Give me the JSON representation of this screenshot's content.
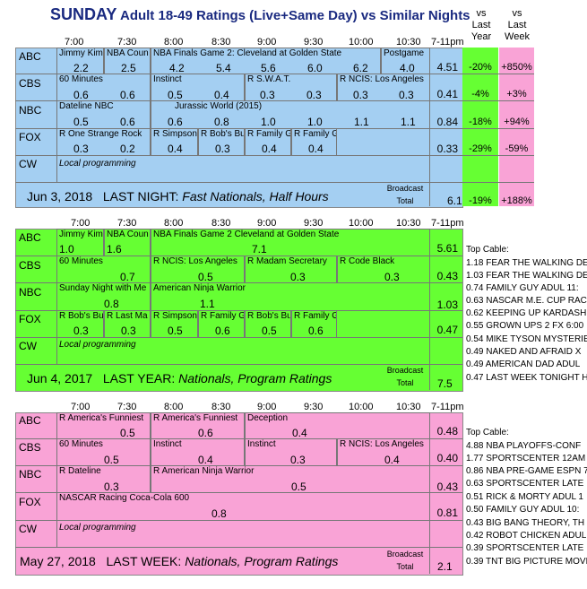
{
  "title": {
    "day": "SUNDAY",
    "rest": "Adult 18-49 Ratings (Live+Same Day) vs Similar Nights"
  },
  "headers": {
    "vs_last_year": [
      "vs",
      "Last",
      "Year"
    ],
    "vs_last_week": [
      "vs",
      "Last",
      "Week"
    ]
  },
  "times": [
    "7:00",
    "7:30",
    "8:00",
    "8:30",
    "9:00",
    "9:30",
    "10:00",
    "10:30",
    "7-11pm"
  ],
  "networks": [
    "ABC",
    "CBS",
    "NBC",
    "FOX",
    "CW"
  ],
  "colors": {
    "blue": "#a4cff2",
    "green": "#66ff33",
    "pink": "#f9a3d6"
  },
  "p1": {
    "rows": [
      {
        "cells": [
          {
            "lbl": "Jimmy Kim",
            "val": "2.2"
          },
          {
            "lbl": "NBA Coun",
            "val": "2.5"
          },
          {
            "lbl": "NBA Finals Game 2: Cleveland at Golden State",
            "val": ""
          },
          {
            "lbl": "",
            "val": "4.2"
          },
          {
            "lbl": "",
            "val": "5.4"
          },
          {
            "lbl": "",
            "val": "5.6"
          },
          {
            "lbl": "",
            "val": "6.0"
          },
          {
            "lbl": "",
            "val": "6.2"
          },
          {
            "lbl": "Postgame",
            "val": "4.0"
          }
        ],
        "avg": "4.51",
        "yr": "-20%",
        "wk": "+850%"
      },
      {
        "cells": [
          {
            "lbl": "60 Minutes",
            "val": "0.6"
          },
          {
            "lbl": "",
            "val": "0.6"
          },
          {
            "lbl": "Instinct",
            "val": "0.5"
          },
          {
            "lbl": "",
            "val": "0.4"
          },
          {
            "lbl": "R S.W.A.T.",
            "val": "0.3"
          },
          {
            "lbl": "",
            "val": "0.3"
          },
          {
            "lbl": "R NCIS: Los Angeles",
            "val": "0.3"
          },
          {
            "lbl": "",
            "val": "0.3"
          }
        ],
        "avg": "0.41",
        "yr": "-4%",
        "wk": "+3%"
      },
      {
        "cells": [
          {
            "lbl": "Dateline NBC",
            "val": "0.5"
          },
          {
            "lbl": "",
            "val": "0.6"
          },
          {
            "lbl": "Jurassic World (2015)",
            "val": "0.6"
          },
          {
            "lbl": "",
            "val": "0.8"
          },
          {
            "lbl": "",
            "val": "1.0"
          },
          {
            "lbl": "",
            "val": "1.0"
          },
          {
            "lbl": "",
            "val": "1.1"
          },
          {
            "lbl": "",
            "val": "1.1"
          }
        ],
        "avg": "0.84",
        "yr": "-18%",
        "wk": "+94%"
      },
      {
        "cells": [
          {
            "lbl": "R One Strange Rock",
            "val": "0.3"
          },
          {
            "lbl": "",
            "val": "0.2"
          },
          {
            "lbl": "R Simpson",
            "val": "0.4"
          },
          {
            "lbl": "R Bob's Bu",
            "val": "0.3"
          },
          {
            "lbl": "R Family G",
            "val": "0.4"
          },
          {
            "lbl": "R Family G",
            "val": "0.4"
          }
        ],
        "avg": "0.33",
        "yr": "-29%",
        "wk": "-59%"
      },
      {
        "local": "Local programming"
      }
    ],
    "footer": {
      "date": "Jun 3, 2018",
      "label": "LAST NIGHT:",
      "desc": "Fast Nationals, Half Hours",
      "bt1": "Broadcast",
      "bt2": "Total",
      "total": "6.1",
      "yr": "-19%",
      "wk": "+188%"
    }
  },
  "p2": {
    "rows": [
      {
        "cells": [
          {
            "lbl": "Jimmy Kim",
            "val": "1.0"
          },
          {
            "lbl": "NBA Coun",
            "val": "1.6"
          },
          {
            "lbl": "NBA Finals Game 2 Cleveland at Golden State",
            "val": "7.1"
          }
        ],
        "avg": "5.61"
      },
      {
        "cells": [
          {
            "lbl": "60 Minutes",
            "val": "0.7"
          },
          {
            "lbl": "R NCIS: Los Angeles",
            "val": "0.5"
          },
          {
            "lbl": "R Madam Secretary",
            "val": "0.3"
          },
          {
            "lbl": "R Code Black",
            "val": "0.3"
          }
        ],
        "avg": "0.43"
      },
      {
        "cells": [
          {
            "lbl": "Sunday Night with Me",
            "val": "0.8"
          },
          {
            "lbl": "American Ninja Warrior",
            "val": "1.1"
          }
        ],
        "avg": "1.03"
      },
      {
        "cells": [
          {
            "lbl": "R Bob's Bu",
            "val": "0.3"
          },
          {
            "lbl": "R Last Ma",
            "val": "0.3"
          },
          {
            "lbl": "R Simpson",
            "val": "0.5"
          },
          {
            "lbl": "R Family G",
            "val": "0.6"
          },
          {
            "lbl": "R Bob's Bu",
            "val": "0.5"
          },
          {
            "lbl": "R Family G",
            "val": "0.6"
          }
        ],
        "avg": "0.47"
      },
      {
        "local": "Local programming"
      }
    ],
    "footer": {
      "date": "Jun 4, 2017",
      "label": "LAST YEAR:",
      "desc": "Nationals, Program Ratings",
      "bt1": "Broadcast",
      "bt2": "Total",
      "total": "7.5"
    },
    "top_cable_title": "Top Cable:",
    "top_cable": [
      "1.18 FEAR THE WALKING DE",
      "1.03 FEAR THE WALKING DE",
      "0.74 FAMILY GUY ADUL 11:",
      "0.63 NASCAR M.E. CUP RAC",
      "0.62 KEEPING UP KARDASH",
      "0.55 GROWN UPS 2 FX 6:00",
      "0.54 MIKE TYSON MYSTERIE",
      "0.49 NAKED AND AFRAID X",
      "0.49 AMERICAN DAD ADUL",
      "0.47 LAST WEEK TONIGHT H"
    ]
  },
  "p3": {
    "rows": [
      {
        "cells": [
          {
            "lbl": "R America's Funniest",
            "val": "0.5"
          },
          {
            "lbl": "R America's Funniest",
            "val": "0.6"
          },
          {
            "lbl": "Deception",
            "val": "0.4"
          }
        ],
        "avg": "0.48"
      },
      {
        "cells": [
          {
            "lbl": "60 Minutes",
            "val": "0.5"
          },
          {
            "lbl": "Instinct",
            "val": "0.4"
          },
          {
            "lbl": "Instinct",
            "val": "0.3"
          },
          {
            "lbl": "R NCIS: Los Angeles",
            "val": "0.4"
          }
        ],
        "avg": "0.40"
      },
      {
        "cells": [
          {
            "lbl": "R Dateline",
            "val": "0.3"
          },
          {
            "lbl": "R American Ninja Warrior",
            "val": "0.5"
          }
        ],
        "avg": "0.43"
      },
      {
        "cells": [
          {
            "lbl": "NASCAR Racing Coca-Cola 600",
            "val": "0.8"
          }
        ],
        "avg": "0.81"
      },
      {
        "local": "Local programming"
      }
    ],
    "footer": {
      "date": "May 27, 2018",
      "label": "LAST WEEK:",
      "desc": "Nationals, Program Ratings",
      "bt1": "Broadcast",
      "bt2": "Total",
      "total": "2.1"
    },
    "top_cable_title": "Top Cable:",
    "top_cable": [
      "4.88 NBA PLAYOFFS-CONF",
      "1.77 SPORTSCENTER 12AM",
      "0.86 NBA PRE-GAME ESPN 7",
      "0.63 SPORTSCENTER LATE",
      "0.51 RICK & MORTY ADUL 1",
      "0.50 FAMILY GUY ADUL 10:",
      "0.43 BIG BANG THEORY, TH",
      "0.42 ROBOT CHICKEN ADUL",
      "0.39 SPORTSCENTER LATE",
      "0.39 TNT BIG PICTURE MOVI"
    ]
  }
}
